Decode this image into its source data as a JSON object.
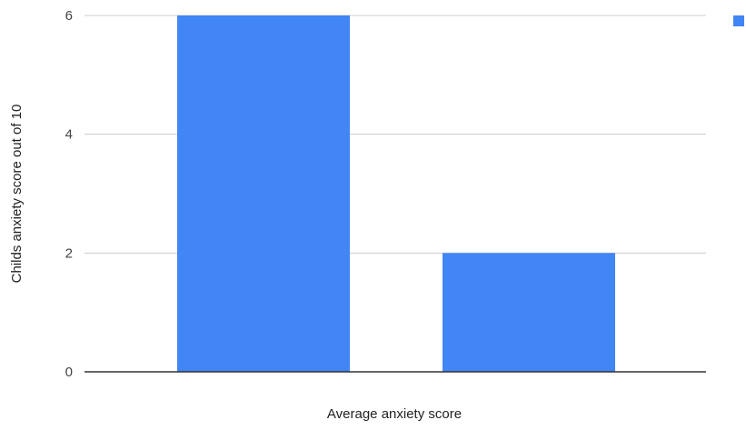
{
  "chart_data": {
    "type": "bar",
    "categories": [
      "",
      ""
    ],
    "series": [
      {
        "values": [
          6,
          2
        ]
      }
    ],
    "xlabel": "Average anxiety score",
    "ylabel": "Childs anxiety score out of 10",
    "ylim": [
      0,
      6
    ],
    "yticks": [
      "0",
      "2",
      "4",
      "6"
    ],
    "grid": true,
    "legend_position": "top-right",
    "colors": {
      "bar": "#4285f4",
      "grid": "#cccccc",
      "baseline": "#333333"
    }
  }
}
